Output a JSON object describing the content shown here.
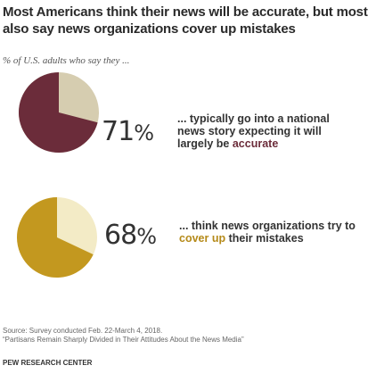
{
  "title": "Most Americans think their news will be accurate, but most also say news organizations cover up mistakes",
  "subtitle": "% of U.S. adults who say they ...",
  "chart_data": [
    {
      "type": "pie",
      "value": 71,
      "value_label": "71",
      "unit": "%",
      "description_pre": "... typically go into a national news story expecting it will largely be ",
      "description_highlight": "accurate",
      "description_post": "",
      "color": "#6b2c3a",
      "remainder_color": "#d6cdb0"
    },
    {
      "type": "pie",
      "value": 68,
      "value_label": "68",
      "unit": "%",
      "description_pre": "... think news organizations try to ",
      "description_highlight": "cover up",
      "description_post": " their mistakes",
      "color": "#c3981f",
      "remainder_color": "#f3ebc6"
    }
  ],
  "footer": {
    "source_line1": "Source: Survey conducted Feb. 22-March 4, 2018.",
    "source_line2": "“Partisans Remain Sharply Divided in Their Attitudes About the News Media”",
    "org": "PEW RESEARCH CENTER"
  }
}
